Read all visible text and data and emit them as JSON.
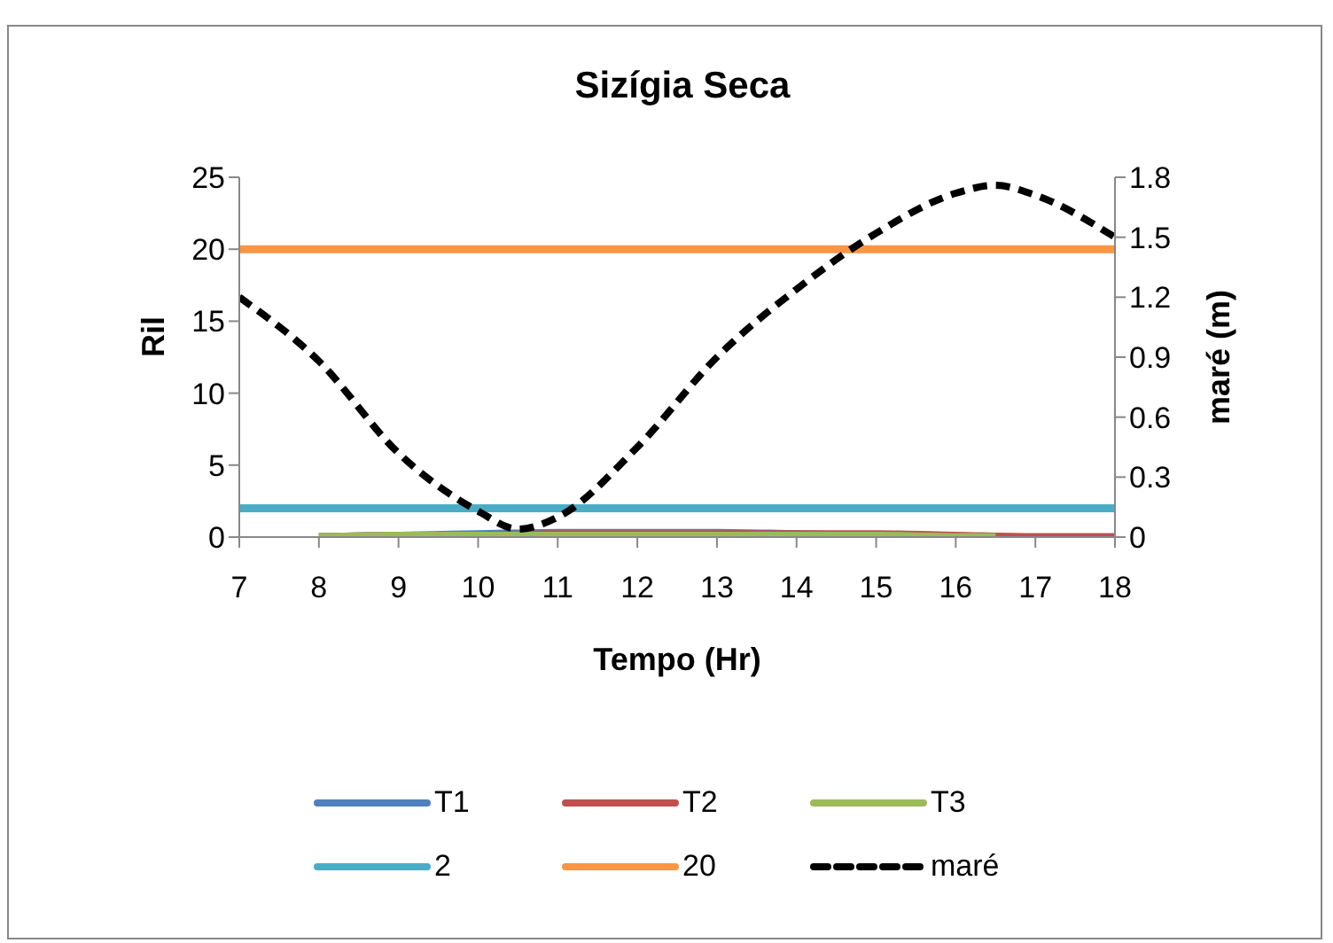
{
  "chart_data": {
    "type": "line",
    "title": "Sizígia Seca",
    "xlabel": "Tempo (Hr)",
    "ylabel": "Ril",
    "y2label": "maré (m)",
    "xlim": [
      7,
      18
    ],
    "xticks": [
      7,
      8,
      9,
      10,
      11,
      12,
      13,
      14,
      15,
      16,
      17,
      18
    ],
    "ylim": [
      0,
      25
    ],
    "yticks": [
      0,
      5,
      10,
      15,
      20,
      25
    ],
    "y2lim": [
      0,
      1.8
    ],
    "y2ticks": [
      0,
      0.3,
      0.6,
      0.9,
      1.2,
      1.5,
      1.8
    ],
    "legend": "bottom",
    "marker": "none",
    "grid": false,
    "series": [
      {
        "name": "T1",
        "color": "#4f81bd",
        "x": [
          8,
          9,
          10,
          11,
          12,
          13,
          14,
          15
        ],
        "values": [
          0,
          0.1,
          0.2,
          0.3,
          0.3,
          0.3,
          0.2,
          0.1
        ]
      },
      {
        "name": "T2",
        "color": "#c0504d",
        "x": [
          8,
          9,
          10,
          11,
          12,
          13,
          14,
          15,
          16,
          17,
          18
        ],
        "values": [
          0,
          0.1,
          0.1,
          0.2,
          0.2,
          0.2,
          0.2,
          0.2,
          0.1,
          0,
          0
        ]
      },
      {
        "name": "T3",
        "color": "#9bbb59",
        "x": [
          8,
          9,
          10,
          11,
          12,
          13,
          14,
          15,
          16,
          16.5
        ],
        "values": [
          0,
          0.1,
          0.1,
          0.1,
          0.1,
          0.1,
          0.1,
          0.1,
          0,
          0
        ]
      },
      {
        "name": "2",
        "color": "#4bacc6",
        "x": [
          7,
          18
        ],
        "values": [
          2,
          2
        ]
      },
      {
        "name": "20",
        "color": "#f79646",
        "x": [
          7,
          18
        ],
        "values": [
          20,
          20
        ]
      },
      {
        "name": "maré",
        "color": "#000000",
        "axis": "y2",
        "line_style": "dashed",
        "x": [
          7,
          8,
          9,
          10,
          10.5,
          11,
          12,
          13,
          14,
          15,
          16,
          16.5,
          17,
          18
        ],
        "values": [
          1.2,
          0.88,
          0.42,
          0.13,
          0.04,
          0.1,
          0.45,
          0.9,
          1.24,
          1.52,
          1.72,
          1.76,
          1.71,
          1.5
        ]
      }
    ]
  }
}
